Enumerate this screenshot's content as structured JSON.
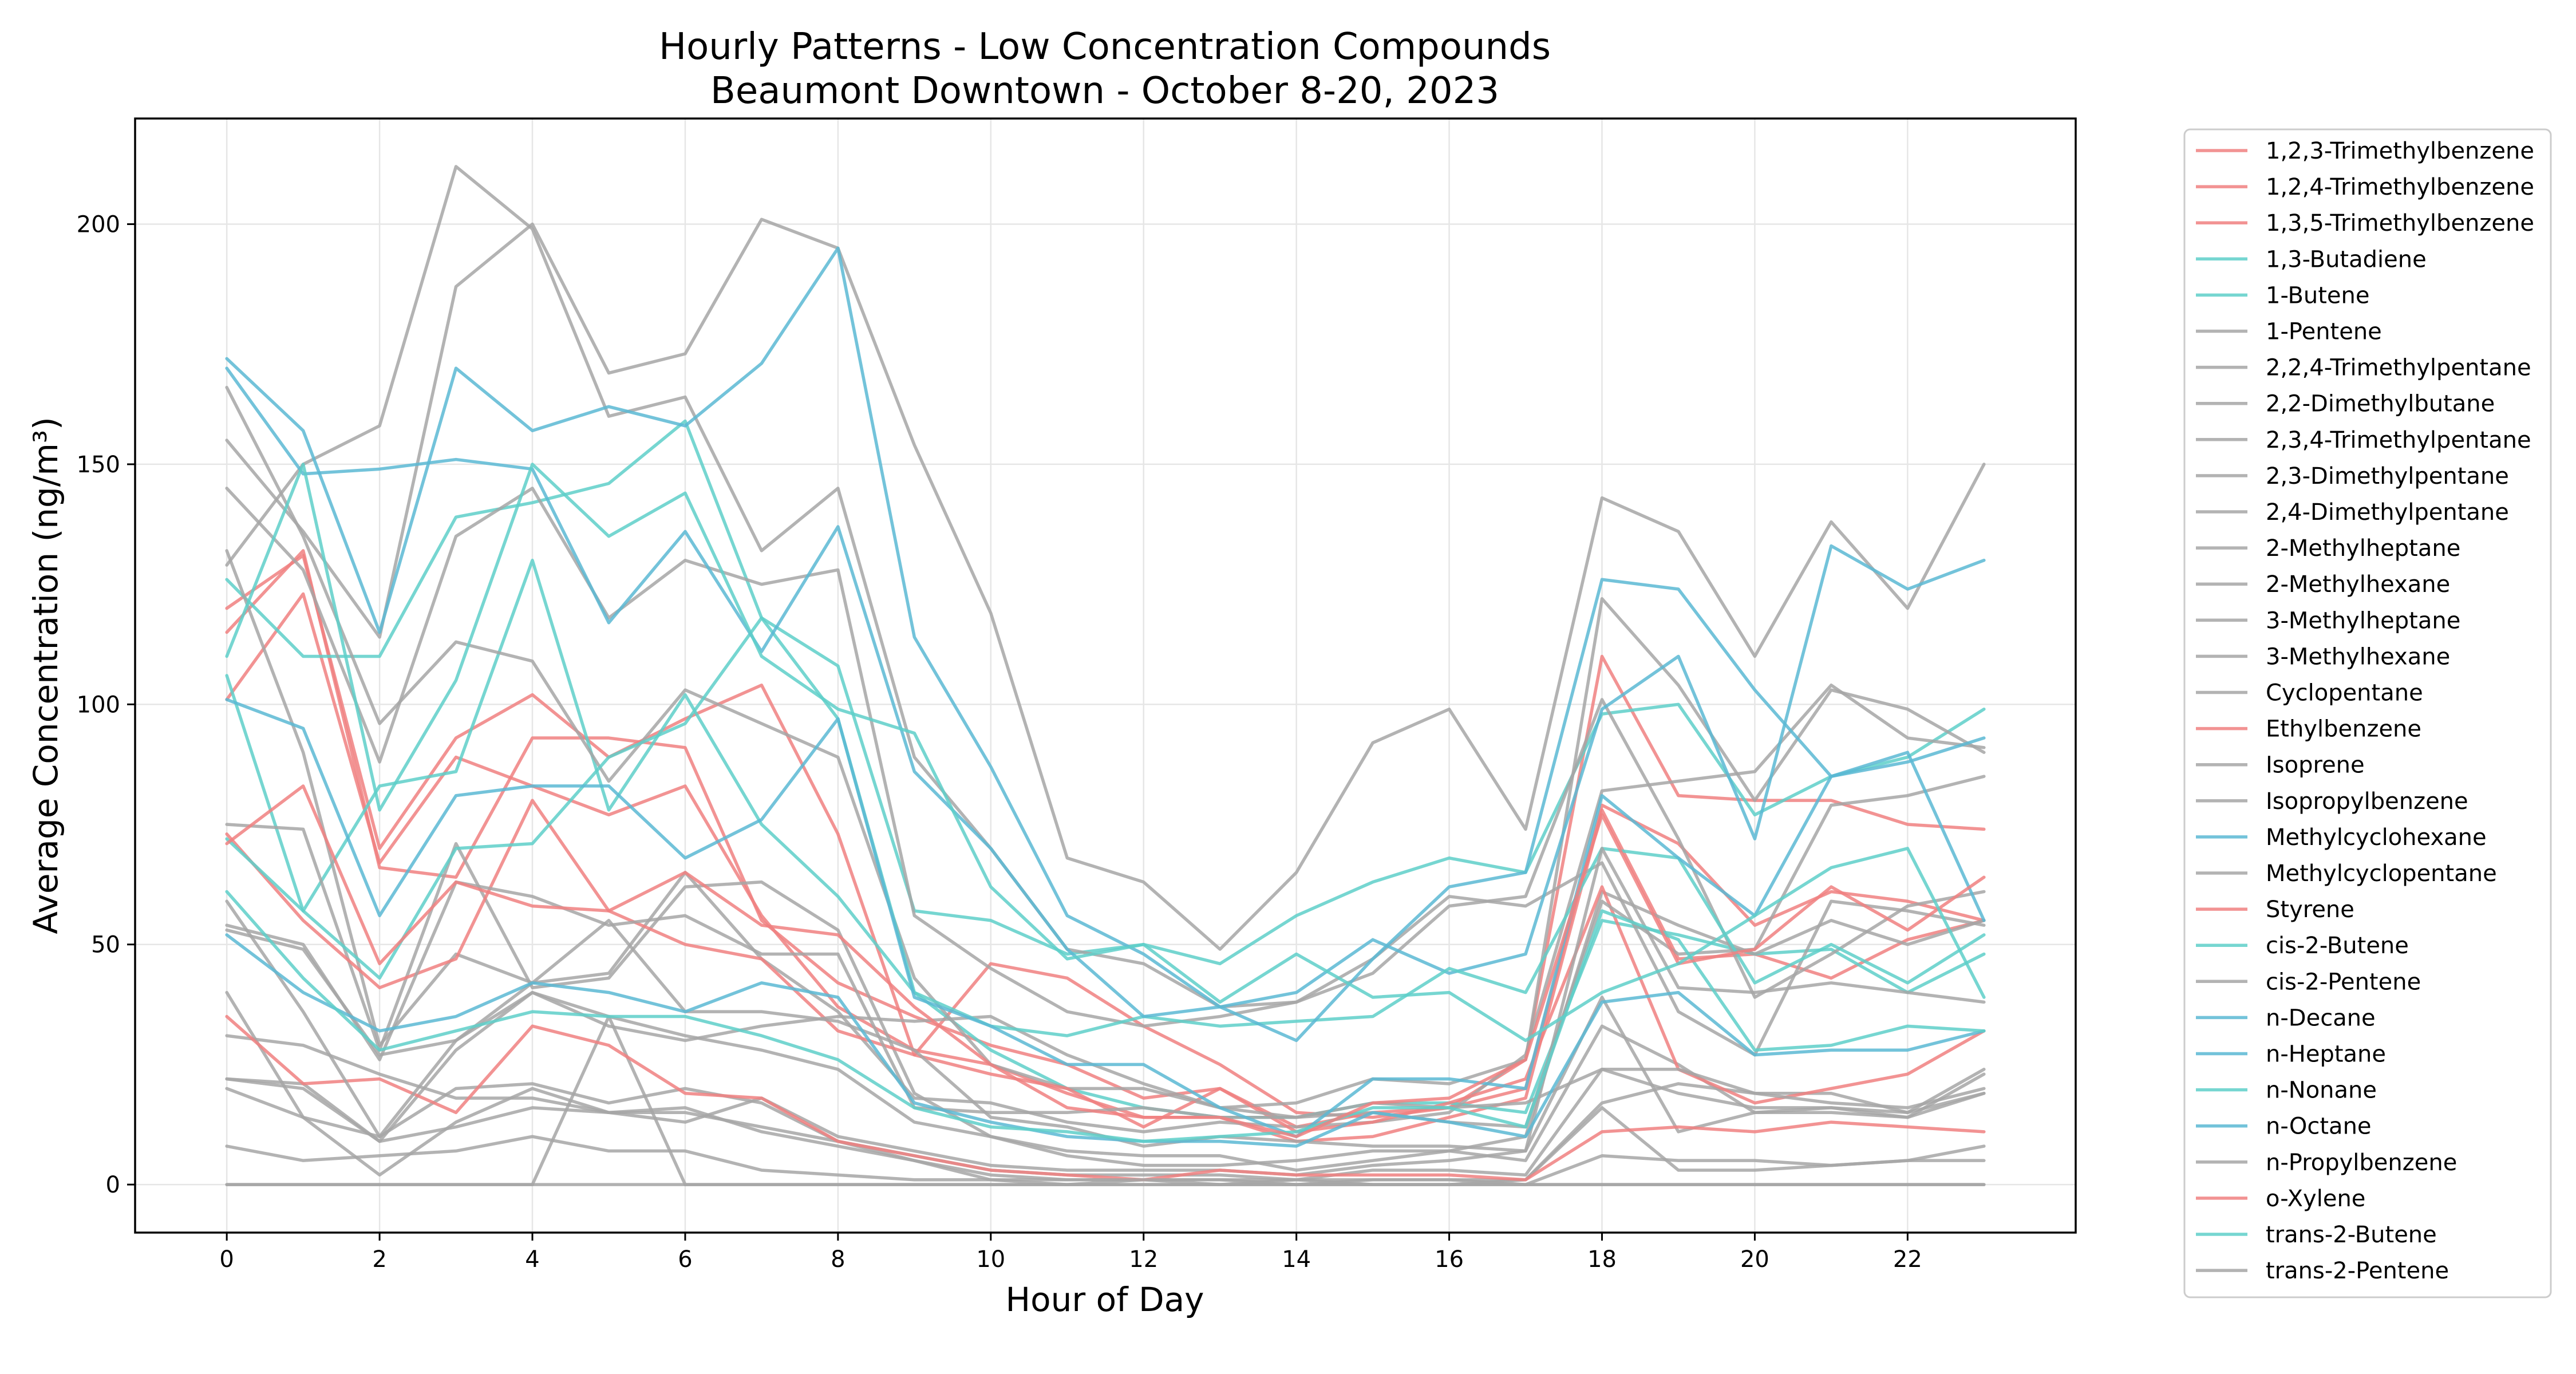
{
  "chart_data": {
    "type": "line",
    "title": "Hourly Patterns - Low Concentration Compounds",
    "subtitle": "Beaumont Downtown - October 8-20, 2023",
    "xlabel": "Hour of Day",
    "ylabel": "Average Concentration (ng/m³)",
    "xlim": [
      -1.2,
      24.2
    ],
    "ylim": [
      -10,
      222
    ],
    "x_ticks": [
      0,
      2,
      4,
      6,
      8,
      10,
      12,
      14,
      16,
      18,
      20,
      22
    ],
    "y_ticks": [
      0,
      50,
      100,
      150,
      200
    ],
    "grid": true,
    "legend_position": "outside-right",
    "colors": {
      "red": "#f08080",
      "teal": "#5ecfc9",
      "blue": "#5bb8d4",
      "gray": "#a6a6a6"
    },
    "x": [
      0,
      1,
      2,
      3,
      4,
      5,
      6,
      7,
      8,
      9,
      10,
      11,
      12,
      13,
      14,
      15,
      16,
      17,
      18,
      19,
      20,
      21,
      22,
      23
    ],
    "series": [
      {
        "name": "1,2,3-Trimethylbenzene",
        "color": "red",
        "values": [
          120,
          131,
          70,
          93,
          102,
          89,
          97,
          104,
          73,
          27,
          46,
          43,
          33,
          25,
          15,
          14,
          16,
          20,
          79,
          71,
          54,
          61,
          59,
          55
        ]
      },
      {
        "name": "1,2,4-Trimethylbenzene",
        "color": "red",
        "values": [
          115,
          132,
          66,
          64,
          93,
          93,
          91,
          55,
          42,
          35,
          29,
          25,
          18,
          20,
          12,
          15,
          16,
          26,
          110,
          81,
          80,
          80,
          75,
          74
        ]
      },
      {
        "name": "1,3,5-Trimethylbenzene",
        "color": "red",
        "values": [
          101,
          123,
          67,
          89,
          83,
          77,
          83,
          56,
          37,
          28,
          25,
          19,
          14,
          14,
          9,
          10,
          14,
          18,
          78,
          47,
          48,
          43,
          51,
          55
        ]
      },
      {
        "name": "1,3-Butadiene",
        "color": "teal",
        "values": [
          126,
          110,
          110,
          139,
          142,
          146,
          159,
          118,
          108,
          57,
          55,
          48,
          50,
          46,
          56,
          63,
          68,
          65,
          98,
          100,
          77,
          85,
          89,
          99
        ]
      },
      {
        "name": "1-Butene",
        "color": "teal",
        "values": [
          106,
          57,
          83,
          86,
          130,
          78,
          102,
          75,
          60,
          40,
          28,
          20,
          16,
          14,
          14,
          17,
          17,
          15,
          55,
          52,
          48,
          49,
          40,
          48
        ]
      },
      {
        "name": "1-Pentene",
        "color": "gray",
        "values": [
          8,
          5,
          6,
          7,
          10,
          7,
          7,
          3,
          2,
          1,
          1,
          1,
          1,
          1,
          1,
          0,
          0,
          1,
          16,
          3,
          3,
          4,
          5,
          8
        ]
      },
      {
        "name": "2,2,4-Trimethylpentane",
        "color": "gray",
        "values": [
          166,
          135,
          96,
          113,
          109,
          84,
          103,
          96,
          89,
          43,
          25,
          20,
          20,
          16,
          17,
          22,
          21,
          26,
          122,
          104,
          80,
          103,
          99,
          90
        ]
      },
      {
        "name": "2,2-Dimethylbutane",
        "color": "gray",
        "values": [
          0,
          0,
          0,
          0,
          0,
          35,
          0,
          0,
          0,
          0,
          0,
          0,
          0,
          0,
          0,
          0,
          0,
          0,
          0,
          0,
          0,
          0,
          0,
          0
        ]
      },
      {
        "name": "2,3,4-Trimethylpentane",
        "color": "gray",
        "values": [
          40,
          14,
          10,
          20,
          21,
          17,
          20,
          17,
          9,
          5,
          1,
          0,
          1,
          0,
          1,
          1,
          1,
          1,
          17,
          21,
          19,
          19,
          15,
          24
        ]
      },
      {
        "name": "2,3-Dimethylpentane",
        "color": "gray",
        "values": [
          75,
          74,
          28,
          71,
          41,
          43,
          62,
          63,
          53,
          19,
          10,
          7,
          6,
          6,
          3,
          5,
          7,
          10,
          61,
          54,
          48,
          55,
          50,
          55
        ]
      },
      {
        "name": "2,4-Dimethylpentane",
        "color": "gray",
        "values": [
          20,
          14,
          2,
          13,
          20,
          15,
          13,
          18,
          10,
          7,
          4,
          3,
          3,
          3,
          2,
          4,
          5,
          7,
          39,
          11,
          15,
          15,
          14,
          23
        ]
      },
      {
        "name": "2-Methylheptane",
        "color": "gray",
        "values": [
          155,
          136,
          114,
          187,
          200,
          169,
          173,
          201,
          195,
          154,
          119,
          68,
          63,
          49,
          65,
          92,
          99,
          74,
          143,
          136,
          110,
          138,
          120,
          150
        ]
      },
      {
        "name": "2-Methylhexane",
        "color": "gray",
        "values": [
          132,
          90,
          29,
          48,
          42,
          44,
          65,
          47,
          36,
          18,
          17,
          13,
          11,
          13,
          12,
          13,
          15,
          27,
          82,
          84,
          86,
          104,
          93,
          91
        ]
      },
      {
        "name": "3-Methylheptane",
        "color": "gray",
        "values": [
          129,
          150,
          158,
          212,
          199,
          160,
          164,
          132,
          145,
          89,
          70,
          49,
          46,
          37,
          38,
          47,
          60,
          58,
          67,
          36,
          27,
          59,
          57,
          54
        ]
      },
      {
        "name": "3-Methylhexane",
        "color": "gray",
        "values": [
          145,
          128,
          88,
          135,
          145,
          118,
          130,
          125,
          128,
          56,
          45,
          36,
          33,
          35,
          38,
          44,
          58,
          60,
          101,
          72,
          39,
          48,
          58,
          61
        ]
      },
      {
        "name": "Cyclopentane",
        "color": "gray",
        "values": [
          22,
          21,
          9,
          28,
          40,
          35,
          31,
          28,
          24,
          13,
          10,
          6,
          4,
          4,
          5,
          7,
          7,
          5,
          33,
          25,
          15,
          16,
          14,
          19
        ]
      },
      {
        "name": "Ethylbenzene",
        "color": "red",
        "values": [
          73,
          55,
          41,
          47,
          80,
          57,
          50,
          47,
          32,
          27,
          23,
          20,
          12,
          20,
          11,
          13,
          17,
          22,
          62,
          24,
          17,
          20,
          23,
          32
        ]
      },
      {
        "name": "Isoprene",
        "color": "gray",
        "values": [
          53,
          49,
          27,
          30,
          40,
          33,
          30,
          33,
          35,
          34,
          35,
          27,
          21,
          16,
          14,
          17,
          16,
          17,
          24,
          24,
          19,
          17,
          16,
          20
        ]
      },
      {
        "name": "Isopropylbenzene",
        "color": "gray",
        "values": [
          31,
          29,
          23,
          18,
          18,
          15,
          15,
          12,
          9,
          6,
          3,
          2,
          2,
          2,
          1,
          3,
          3,
          2,
          24,
          19,
          16,
          16,
          15,
          19
        ]
      },
      {
        "name": "Methylcyclohexane",
        "color": "blue",
        "values": [
          172,
          157,
          115,
          170,
          157,
          162,
          158,
          171,
          195,
          114,
          87,
          56,
          48,
          37,
          40,
          51,
          44,
          48,
          99,
          110,
          72,
          133,
          124,
          130
        ]
      },
      {
        "name": "Methylcyclopentane",
        "color": "gray",
        "values": [
          54,
          50,
          26,
          63,
          60,
          54,
          56,
          48,
          48,
          16,
          15,
          15,
          16,
          14,
          14,
          15,
          13,
          12,
          59,
          48,
          49,
          79,
          81,
          85
        ]
      },
      {
        "name": "Styrene",
        "color": "red",
        "values": [
          35,
          21,
          22,
          15,
          33,
          29,
          19,
          18,
          9,
          6,
          3,
          2,
          1,
          3,
          2,
          2,
          2,
          1,
          11,
          12,
          11,
          13,
          12,
          11
        ]
      },
      {
        "name": "cis-2-Butene",
        "color": "teal",
        "values": [
          72,
          57,
          43,
          70,
          71,
          89,
          96,
          118,
          97,
          40,
          33,
          31,
          35,
          33,
          34,
          35,
          45,
          40,
          70,
          68,
          42,
          50,
          42,
          52
        ]
      },
      {
        "name": "cis-2-Pentene",
        "color": "gray",
        "values": [
          59,
          36,
          10,
          30,
          42,
          55,
          36,
          36,
          34,
          28,
          14,
          12,
          8,
          10,
          9,
          8,
          8,
          7,
          70,
          41,
          40,
          42,
          40,
          38
        ]
      },
      {
        "name": "n-Decane",
        "color": "blue",
        "values": [
          52,
          40,
          32,
          35,
          42,
          40,
          36,
          42,
          39,
          17,
          13,
          10,
          9,
          9,
          8,
          15,
          13,
          10,
          38,
          40,
          27,
          28,
          28,
          32
        ]
      },
      {
        "name": "n-Heptane",
        "color": "blue",
        "values": [
          101,
          95,
          56,
          81,
          83,
          83,
          68,
          76,
          97,
          39,
          33,
          25,
          25,
          16,
          10,
          22,
          22,
          20,
          81,
          68,
          56,
          85,
          88,
          93
        ]
      },
      {
        "name": "n-Nonane",
        "color": "teal",
        "values": [
          61,
          43,
          28,
          32,
          36,
          35,
          35,
          31,
          26,
          16,
          12,
          11,
          9,
          10,
          11,
          16,
          16,
          12,
          57,
          51,
          28,
          29,
          33,
          32
        ]
      },
      {
        "name": "n-Octane",
        "color": "blue",
        "values": [
          170,
          148,
          149,
          151,
          149,
          117,
          136,
          111,
          137,
          86,
          70,
          49,
          35,
          37,
          30,
          47,
          62,
          65,
          126,
          124,
          103,
          85,
          90,
          55
        ]
      },
      {
        "name": "n-Propylbenzene",
        "color": "gray",
        "values": [
          22,
          20,
          9,
          12,
          16,
          15,
          16,
          11,
          8,
          5,
          2,
          1,
          1,
          1,
          0,
          1,
          1,
          0,
          6,
          5,
          5,
          4,
          5,
          5
        ]
      },
      {
        "name": "o-Xylene",
        "color": "red",
        "values": [
          71,
          83,
          46,
          63,
          58,
          57,
          65,
          54,
          52,
          37,
          25,
          16,
          14,
          14,
          10,
          17,
          18,
          26,
          77,
          46,
          49,
          62,
          53,
          64
        ]
      },
      {
        "name": "trans-2-Butene",
        "color": "teal",
        "values": [
          110,
          150,
          78,
          105,
          150,
          135,
          144,
          110,
          99,
          94,
          62,
          47,
          50,
          38,
          48,
          39,
          40,
          30,
          40,
          46,
          56,
          66,
          70,
          39
        ]
      },
      {
        "name": "trans-2-Pentene",
        "color": "gray",
        "values": [
          0,
          0,
          0,
          0,
          0,
          0,
          0,
          0,
          0,
          0,
          0,
          0,
          0,
          0,
          0,
          0,
          0,
          0,
          0,
          0,
          0,
          0,
          0,
          0
        ]
      }
    ]
  }
}
